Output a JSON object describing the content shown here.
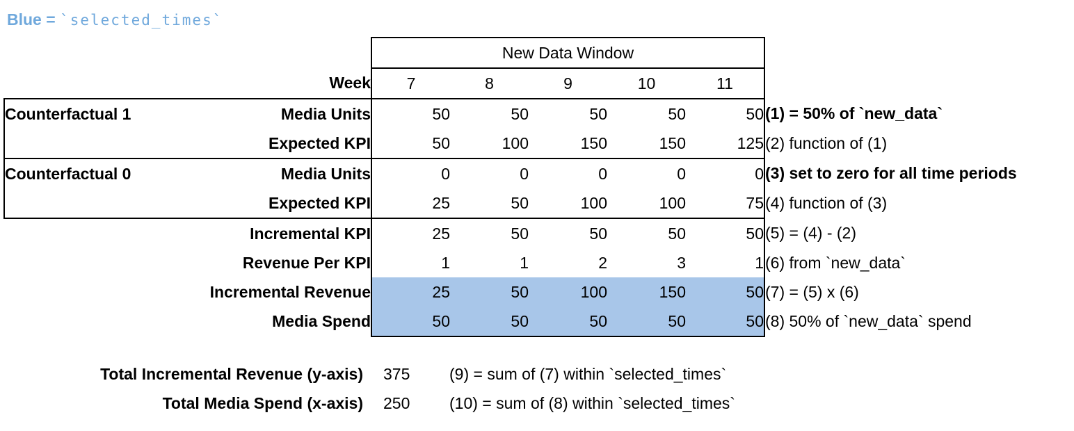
{
  "legend": {
    "prefix": "Blue =",
    "code": "`selected_times`"
  },
  "colors": {
    "highlight_blue": "#A8C6E9",
    "legend_blue": "#6FA8DC",
    "border_black": "#000000"
  },
  "table": {
    "window_header": "New Data Window",
    "week_label": "Week",
    "weeks": [
      "7",
      "8",
      "9",
      "10",
      "11"
    ],
    "rows": [
      {
        "group": "Counterfactual 1",
        "label": "Media Units",
        "values": [
          "50",
          "50",
          "50",
          "50",
          "50"
        ],
        "note": "(1) = 50% of `new_data`"
      },
      {
        "group": "",
        "label": "Expected KPI",
        "values": [
          "50",
          "100",
          "150",
          "150",
          "125"
        ],
        "note": "(2) function of (1)"
      },
      {
        "group": "Counterfactual 0",
        "label": "Media Units",
        "values": [
          "0",
          "0",
          "0",
          "0",
          "0"
        ],
        "note": "(3) set to zero for all time periods"
      },
      {
        "group": "",
        "label": "Expected KPI",
        "values": [
          "25",
          "50",
          "100",
          "100",
          "75"
        ],
        "note": "(4) function of (3)"
      },
      {
        "group": "",
        "label": "Incremental KPI",
        "values": [
          "25",
          "50",
          "50",
          "50",
          "50"
        ],
        "note": "(5) = (4) - (2)"
      },
      {
        "group": "",
        "label": "Revenue Per KPI",
        "values": [
          "1",
          "1",
          "2",
          "3",
          "1"
        ],
        "note": "(6) from `new_data`"
      },
      {
        "group": "",
        "label": "Incremental Revenue",
        "values": [
          "25",
          "50",
          "100",
          "150",
          "50"
        ],
        "note": "(7) = (5) x (6)"
      },
      {
        "group": "",
        "label": "Media Spend",
        "values": [
          "50",
          "50",
          "50",
          "50",
          "50"
        ],
        "note": "(8) 50% of `new_data` spend"
      }
    ]
  },
  "totals": [
    {
      "label": "Total Incremental Revenue (y-axis)",
      "value": "375",
      "note": "(9) = sum of (7) within `selected_times`"
    },
    {
      "label": "Total Media Spend (x-axis)",
      "value": "250",
      "note": "(10) = sum of (8) within `selected_times`"
    }
  ]
}
